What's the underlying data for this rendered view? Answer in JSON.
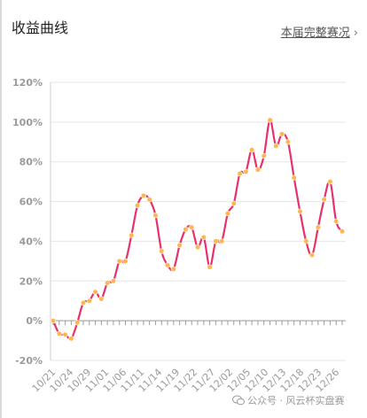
{
  "header": {
    "title": "收益曲线",
    "link_label": "本届完整赛况",
    "link_chevron": "›"
  },
  "watermark": {
    "text": "公众号 · 风云杯实盘赛"
  },
  "colors": {
    "line": "#e8316a",
    "marker": "#ffb74d",
    "grid": "#e6e6e6",
    "axis_text": "#9a9a9a"
  },
  "chart_data": {
    "type": "line",
    "title": "",
    "xlabel": "",
    "ylabel": "",
    "ylim": [
      -20,
      120
    ],
    "yticks": [
      -20,
      0,
      20,
      40,
      60,
      80,
      100,
      120
    ],
    "ytick_labels": [
      "-20%",
      "0%",
      "20%",
      "40%",
      "60%",
      "80%",
      "100%",
      "120%"
    ],
    "grid": true,
    "x_tick_labels": [
      "10/21",
      "10/24",
      "10/29",
      "11/01",
      "11/06",
      "11/11",
      "11/14",
      "11/19",
      "11/22",
      "11/27",
      "12/02",
      "12/05",
      "12/10",
      "12/13",
      "12/18",
      "12/23",
      "12/26"
    ],
    "series": [
      {
        "values": [
          0,
          -6.5,
          -7,
          -9,
          -1,
          9,
          10,
          14.5,
          11,
          19,
          20,
          30,
          30,
          43,
          58,
          63,
          61,
          53,
          35,
          28,
          26,
          38,
          46,
          47,
          37,
          42,
          27,
          40,
          40,
          54,
          59,
          74,
          75,
          86,
          76,
          83,
          101,
          88,
          94,
          90,
          72,
          55,
          40,
          33,
          47,
          61,
          70,
          50,
          45
        ]
      }
    ]
  }
}
